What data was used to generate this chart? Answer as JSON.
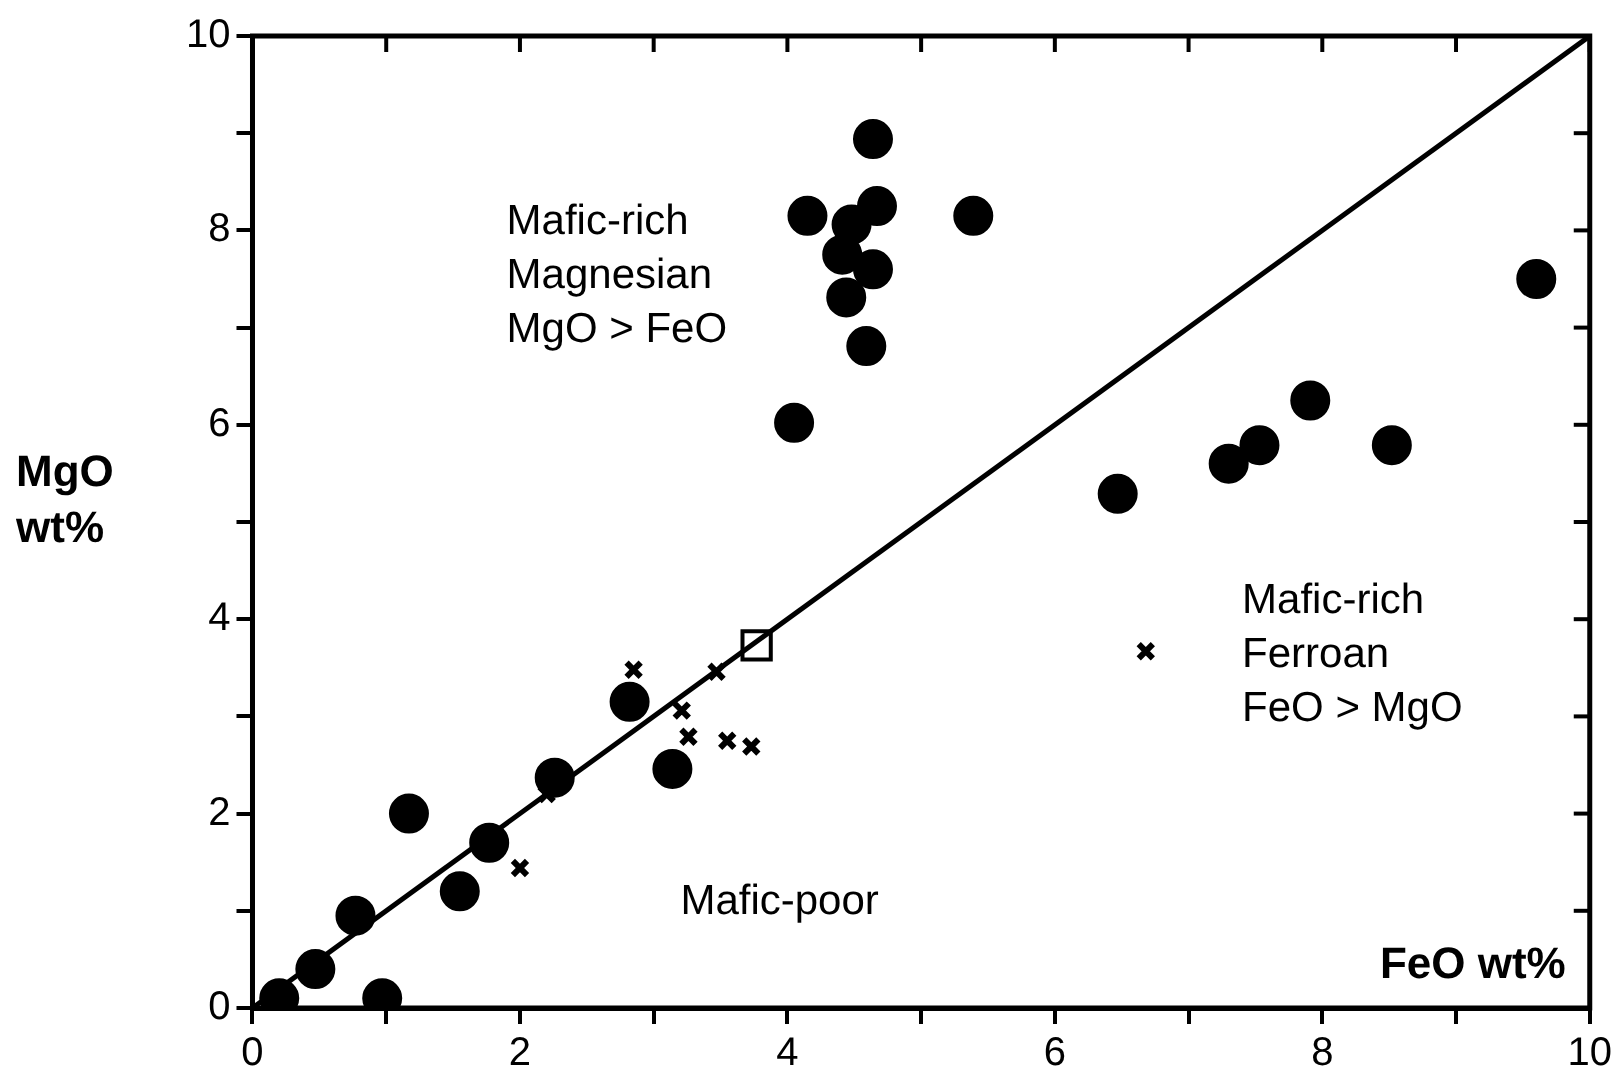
{
  "chart_data": {
    "type": "scatter",
    "xlabel": "FeO wt%",
    "ylabel": "MgO wt%",
    "xlim": [
      0,
      10
    ],
    "ylim": [
      0,
      10
    ],
    "xticks": [
      0,
      {
        "value": 1,
        "label": null
      },
      2,
      {
        "value": 3,
        "label": null
      },
      4,
      {
        "value": 5,
        "label": null
      },
      6,
      {
        "value": 7,
        "label": null
      },
      8,
      {
        "value": 9,
        "label": null
      },
      10
    ],
    "yticks": [
      0,
      {
        "value": 1,
        "label": null
      },
      2,
      {
        "value": 3,
        "label": null
      },
      4,
      {
        "value": 5,
        "label": null
      },
      6,
      {
        "value": 7,
        "label": null
      },
      8,
      {
        "value": 9,
        "label": null
      },
      10
    ],
    "grid": false,
    "legend": false,
    "series": [
      {
        "type": "line",
        "color": "#000000",
        "marker": "none",
        "line_style": "solid",
        "x": [
          0,
          10
        ],
        "values": [
          0,
          10
        ]
      },
      {
        "color": "#000000",
        "marker": "circle",
        "x": [
          0.2,
          0.47,
          0.77,
          0.97,
          1.17,
          1.55,
          1.77,
          2.26,
          2.82,
          3.14,
          4.64,
          4.15,
          4.67,
          4.48,
          5.39,
          4.41,
          4.64,
          4.44,
          4.59,
          4.05,
          6.47,
          7.3,
          7.53,
          7.91,
          8.52,
          9.6
        ],
        "values": [
          0.1,
          0.4,
          0.95,
          0.1,
          2.0,
          1.2,
          1.7,
          2.37,
          3.15,
          2.46,
          8.94,
          8.15,
          8.25,
          8.06,
          8.15,
          7.75,
          7.6,
          7.31,
          6.81,
          6.02,
          5.29,
          5.6,
          5.79,
          6.25,
          5.79,
          7.5
        ]
      },
      {
        "color": "#000000",
        "marker": "cross",
        "x": [
          2.0,
          2.2,
          2.85,
          3.21,
          3.26,
          3.47,
          3.55,
          3.73,
          6.68
        ],
        "values": [
          1.44,
          2.2,
          3.48,
          3.06,
          2.79,
          3.46,
          2.75,
          2.69,
          3.67
        ]
      },
      {
        "color": "#000000",
        "marker": "square",
        "x": [
          3.77
        ],
        "values": [
          3.73
        ]
      }
    ],
    "annotations": [
      "Mafic-rich\nMagnesian\nMgO > FeO",
      "Mafic-rich\nFerroan\nFeO > MgO",
      "Mafic-poor"
    ]
  }
}
